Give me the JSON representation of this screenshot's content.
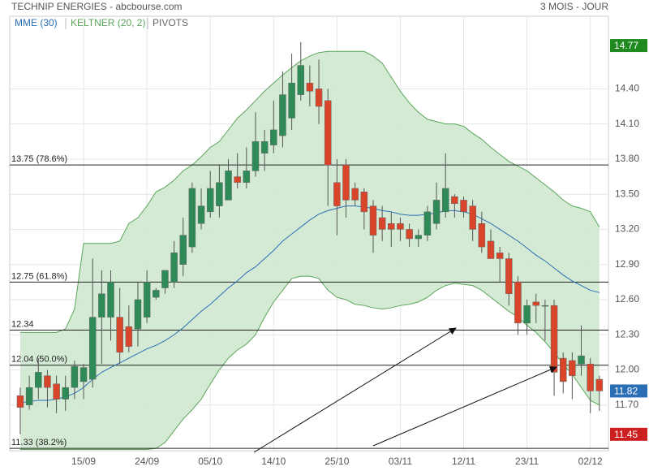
{
  "chart_data": {
    "type": "candlestick",
    "title": "TECHNIP ENERGIES - abcbourse.com",
    "subtitle": "3 MOIS - JOUR",
    "categories": [
      null,
      null,
      null,
      null,
      null,
      null,
      null,
      "15/09",
      null,
      null,
      null,
      null,
      null,
      null,
      "24/09",
      null,
      null,
      null,
      null,
      null,
      null,
      "05/10",
      null,
      null,
      null,
      null,
      null,
      null,
      "14/10",
      null,
      null,
      null,
      null,
      null,
      null,
      "25/10",
      null,
      null,
      null,
      null,
      null,
      null,
      "03/11",
      null,
      null,
      null,
      null,
      null,
      null,
      "12/11",
      null,
      null,
      null,
      null,
      null,
      null,
      "23/11",
      null,
      null,
      null,
      null,
      null,
      null,
      "02/12",
      null
    ],
    "open": [
      11.78,
      11.7,
      11.85,
      11.95,
      11.88,
      11.75,
      11.85,
      11.9,
      11.92,
      12.45,
      12.45,
      12.45,
      12.37,
      12.35,
      12.45,
      12.62,
      12.7,
      12.75,
      12.9,
      13.05,
      13.25,
      13.35,
      13.4,
      13.45,
      13.65,
      13.6,
      13.7,
      13.85,
      13.92,
      14.0,
      14.15,
      14.35,
      14.45,
      14.4,
      14.3,
      13.6,
      13.75,
      13.55,
      13.52,
      13.4,
      13.3,
      13.25,
      13.25,
      13.2,
      13.12,
      13.15,
      13.25,
      13.35,
      13.48,
      13.45,
      13.4,
      13.25,
      13.1,
      13.0,
      12.95,
      12.75,
      12.4,
      12.58,
      12.55,
      12.55,
      12.1,
      12.08,
      12.05,
      12.05,
      11.92
    ],
    "high": [
      11.85,
      11.95,
      12.1,
      12.0,
      11.95,
      11.95,
      12.08,
      12.05,
      12.95,
      12.85,
      12.85,
      12.7,
      12.55,
      12.75,
      12.85,
      12.7,
      12.85,
      13.1,
      13.3,
      13.6,
      13.55,
      13.7,
      13.75,
      13.8,
      13.85,
      13.9,
      14.2,
      14.05,
      14.3,
      14.55,
      14.7,
      14.8,
      14.6,
      14.65,
      14.4,
      13.8,
      13.8,
      13.6,
      13.55,
      13.45,
      13.4,
      13.35,
      13.3,
      13.25,
      13.2,
      13.4,
      13.6,
      13.85,
      13.5,
      13.48,
      13.45,
      13.35,
      13.2,
      13.05,
      13.0,
      12.8,
      12.6,
      12.65,
      12.6,
      12.6,
      12.15,
      12.15,
      12.38,
      12.1,
      11.95
    ],
    "low": [
      11.45,
      11.66,
      11.75,
      11.68,
      11.63,
      11.65,
      11.75,
      11.75,
      11.85,
      12.05,
      12.25,
      12.05,
      12.15,
      12.2,
      12.4,
      12.6,
      12.65,
      12.7,
      12.8,
      13.0,
      13.2,
      13.3,
      13.3,
      13.45,
      13.55,
      13.55,
      13.65,
      13.7,
      13.85,
      13.9,
      14.05,
      14.3,
      14.25,
      14.1,
      13.4,
      13.15,
      13.3,
      13.4,
      13.2,
      13.0,
      13.1,
      13.05,
      13.1,
      13.05,
      13.05,
      13.1,
      13.2,
      13.3,
      13.3,
      13.3,
      13.1,
      13.0,
      12.95,
      12.75,
      12.55,
      12.3,
      12.3,
      12.4,
      12.25,
      11.78,
      11.8,
      11.75,
      11.95,
      11.63,
      11.65
    ],
    "close": [
      11.68,
      11.85,
      11.98,
      11.85,
      11.75,
      11.85,
      12.03,
      12.02,
      12.45,
      12.65,
      12.75,
      12.15,
      12.2,
      12.6,
      12.75,
      12.68,
      12.85,
      13.0,
      13.15,
      13.55,
      13.4,
      13.55,
      13.6,
      13.7,
      13.6,
      13.7,
      13.95,
      13.95,
      14.05,
      14.35,
      14.45,
      14.6,
      14.38,
      14.25,
      13.75,
      13.4,
      13.45,
      13.45,
      13.35,
      13.15,
      13.2,
      13.2,
      13.2,
      13.12,
      13.15,
      13.35,
      13.45,
      13.55,
      13.42,
      13.35,
      13.2,
      13.05,
      12.95,
      12.95,
      12.65,
      12.4,
      12.55,
      12.55,
      12.55,
      11.98,
      11.9,
      11.95,
      12.12,
      11.82,
      11.82
    ],
    "up_color": "#2e8b57",
    "down_color": "#d9452b",
    "mme": {
      "name": "MME (30)",
      "color": "#2a6fb5",
      "values": [
        11.72,
        11.73,
        11.74,
        11.74,
        11.75,
        11.77,
        11.8,
        11.85,
        11.92,
        11.98,
        12.02,
        12.06,
        12.1,
        12.14,
        12.18,
        12.21,
        12.25,
        12.3,
        12.36,
        12.43,
        12.5,
        12.56,
        12.63,
        12.7,
        12.76,
        12.83,
        12.88,
        12.95,
        13.02,
        13.1,
        13.16,
        13.22,
        13.28,
        13.33,
        13.36,
        13.38,
        13.4,
        13.4,
        13.39,
        13.38,
        13.36,
        13.35,
        13.33,
        13.32,
        13.32,
        13.33,
        13.34,
        13.36,
        13.36,
        13.35,
        13.33,
        13.29,
        13.25,
        13.2,
        13.15,
        13.1,
        13.04,
        12.98,
        12.93,
        12.87,
        12.81,
        12.76,
        12.72,
        12.68,
        12.66
      ]
    },
    "keltner": {
      "name": "KELTNER (20, 2)",
      "color": "#5aa55a",
      "fill": "#cfe8cf",
      "upper": [
        12.32,
        12.32,
        12.32,
        12.32,
        12.32,
        12.35,
        12.52,
        13.08,
        13.08,
        13.08,
        13.08,
        13.1,
        13.25,
        13.3,
        13.4,
        13.52,
        13.56,
        13.62,
        13.7,
        13.75,
        13.82,
        13.9,
        13.95,
        14.05,
        14.15,
        14.22,
        14.3,
        14.38,
        14.45,
        14.52,
        14.58,
        14.64,
        14.68,
        14.71,
        14.72,
        14.72,
        14.72,
        14.72,
        14.72,
        14.68,
        14.62,
        14.5,
        14.38,
        14.28,
        14.2,
        14.14,
        14.12,
        14.1,
        14.1,
        14.08,
        14.02,
        13.97,
        13.9,
        13.84,
        13.78,
        13.74,
        13.7,
        13.64,
        13.58,
        13.52,
        13.45,
        13.4,
        13.38,
        13.35,
        13.22
      ],
      "lower": [
        11.32,
        11.32,
        11.32,
        11.32,
        11.32,
        11.32,
        11.32,
        11.32,
        11.32,
        11.32,
        11.32,
        11.32,
        11.32,
        11.32,
        11.32,
        11.33,
        11.38,
        11.48,
        11.58,
        11.66,
        11.75,
        11.88,
        12.0,
        12.1,
        12.17,
        12.22,
        12.3,
        12.45,
        12.58,
        12.68,
        12.78,
        12.8,
        12.8,
        12.78,
        12.68,
        12.62,
        12.6,
        12.56,
        12.55,
        12.53,
        12.52,
        12.53,
        12.55,
        12.56,
        12.58,
        12.62,
        12.68,
        12.72,
        12.74,
        12.73,
        12.72,
        12.68,
        12.62,
        12.56,
        12.5,
        12.45,
        12.38,
        12.32,
        12.24,
        12.15,
        12.05,
        11.96,
        11.85,
        11.74,
        11.7
      ]
    },
    "pivots": {
      "name": "PIVOTS",
      "color": "#222222",
      "levels": [
        {
          "value": 13.75,
          "label": "13.75 (78.6%)"
        },
        {
          "value": 12.75,
          "label": "12.75 (61.8%)"
        },
        {
          "value": 12.34,
          "label": "12.34"
        },
        {
          "value": 12.04,
          "label": "12.04 (50.0%)"
        },
        {
          "value": 11.33,
          "label": "11.33 (38.2%)"
        }
      ]
    },
    "price_markers": [
      {
        "value": 14.77,
        "color": "#1f8a1f"
      },
      {
        "value": 11.82,
        "color": "#2a6fb5"
      },
      {
        "value": 11.45,
        "color": "#cc1f1f"
      }
    ],
    "ylim": [
      11.31,
      15.02
    ],
    "yticks": [
      {
        "value": 11.7,
        "label": "11.70"
      },
      {
        "value": 12,
        "label": "12.00"
      },
      {
        "value": 12.3,
        "label": "12.30"
      },
      {
        "value": 12.6,
        "label": "12.60"
      },
      {
        "value": 12.9,
        "label": "12.90"
      },
      {
        "value": 13.2,
        "label": "13.20"
      },
      {
        "value": 13.5,
        "label": "13.50"
      },
      {
        "value": 13.8,
        "label": "13.80"
      },
      {
        "value": 14.1,
        "label": "14.10"
      },
      {
        "value": 14.4,
        "label": "14.40"
      }
    ],
    "grid": true
  }
}
